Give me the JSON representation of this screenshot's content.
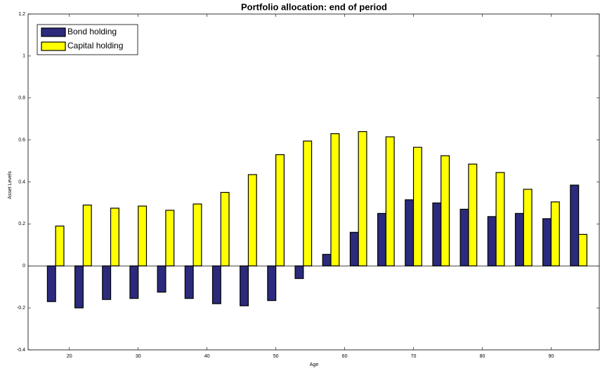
{
  "chart_data": {
    "type": "bar",
    "title": "Portfolio allocation: end of period",
    "x_label": "Age",
    "y_label": "Asset Levels",
    "x": [
      18,
      22,
      26,
      30,
      34,
      38,
      42,
      46,
      50,
      54,
      58,
      62,
      66,
      70,
      74,
      78,
      82,
      86,
      90,
      94
    ],
    "series": [
      {
        "name": "Bond holding",
        "color": "#2b2a7c",
        "values": [
          -0.17,
          -0.2,
          -0.16,
          -0.155,
          -0.125,
          -0.155,
          -0.18,
          -0.19,
          -0.165,
          -0.06,
          0.055,
          0.16,
          0.25,
          0.315,
          0.3,
          0.27,
          0.235,
          0.25,
          0.225,
          0.385
        ]
      },
      {
        "name": "Capital holding",
        "color": "#ffff00",
        "values": [
          0.19,
          0.29,
          0.275,
          0.285,
          0.265,
          0.295,
          0.35,
          0.435,
          0.53,
          0.595,
          0.63,
          0.64,
          0.615,
          0.565,
          0.525,
          0.485,
          0.445,
          0.365,
          0.305,
          0.15
        ]
      }
    ],
    "xlim": [
      14,
      97
    ],
    "xticks": [
      20,
      30,
      40,
      50,
      60,
      70,
      80,
      90
    ],
    "ylim": [
      -0.4,
      1.2
    ],
    "yticks": [
      -0.4,
      -0.2,
      0,
      0.2,
      0.4,
      0.6,
      0.8,
      1,
      1.2
    ],
    "legend": "upper-left"
  }
}
